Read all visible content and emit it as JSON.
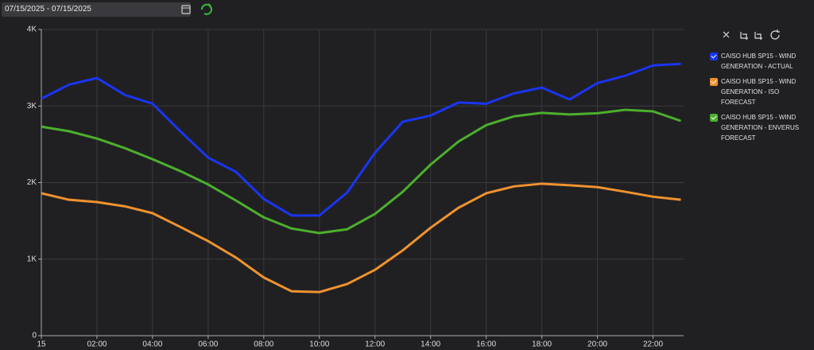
{
  "header": {
    "date_range": "07/15/2025 - 07/15/2025"
  },
  "chart_data": {
    "type": "line",
    "x": [
      0,
      1,
      2,
      3,
      4,
      5,
      6,
      7,
      8,
      9,
      10,
      11,
      12,
      13,
      14,
      15,
      16,
      17,
      18,
      19,
      20,
      21,
      22,
      23
    ],
    "xlim": [
      0,
      23.1
    ],
    "xticks": [
      {
        "value": 0,
        "label": "15"
      },
      {
        "value": 2,
        "label": "02:00"
      },
      {
        "value": 4,
        "label": "04:00"
      },
      {
        "value": 6,
        "label": "06:00"
      },
      {
        "value": 8,
        "label": "08:00"
      },
      {
        "value": 10,
        "label": "10:00"
      },
      {
        "value": 12,
        "label": "12:00"
      },
      {
        "value": 14,
        "label": "14:00"
      },
      {
        "value": 16,
        "label": "16:00"
      },
      {
        "value": 18,
        "label": "18:00"
      },
      {
        "value": 20,
        "label": "20:00"
      },
      {
        "value": 22,
        "label": "22:00"
      }
    ],
    "ylim": [
      0,
      4000
    ],
    "yticks": [
      0,
      {
        "value": 1000,
        "label": "1K"
      },
      {
        "value": 2000,
        "label": "2K"
      },
      {
        "value": 3000,
        "label": "3K"
      },
      {
        "value": 4000,
        "label": "4K"
      }
    ],
    "grid": true,
    "legend": "right",
    "series": [
      {
        "name": "CAISO HUB SP15 - WIND GENERATION - ACTUAL",
        "color": "#1a35f0",
        "values": [
          3095,
          3280,
          3365,
          3145,
          3030,
          2670,
          2325,
          2140,
          1785,
          1570,
          1570,
          1870,
          2390,
          2795,
          2875,
          3045,
          3030,
          3165,
          3240,
          3085,
          3300,
          3395,
          3530,
          3550
        ]
      },
      {
        "name": "CAISO HUB SP15 - WIND GENERATION - ISO FORECAST",
        "color": "#f0922e",
        "values": [
          1860,
          1775,
          1745,
          1690,
          1600,
          1420,
          1235,
          1020,
          760,
          580,
          570,
          675,
          860,
          1115,
          1410,
          1670,
          1860,
          1950,
          1985,
          1965,
          1940,
          1880,
          1815,
          1775
        ]
      },
      {
        "name": "CAISO HUB SP15 - WIND GENERATION - ENVERUS FORECAST",
        "color": "#4caf2c",
        "values": [
          2730,
          2670,
          2575,
          2450,
          2305,
          2150,
          1975,
          1765,
          1545,
          1400,
          1340,
          1390,
          1590,
          1880,
          2235,
          2535,
          2750,
          2865,
          2910,
          2890,
          2905,
          2950,
          2930,
          2805
        ]
      }
    ]
  }
}
